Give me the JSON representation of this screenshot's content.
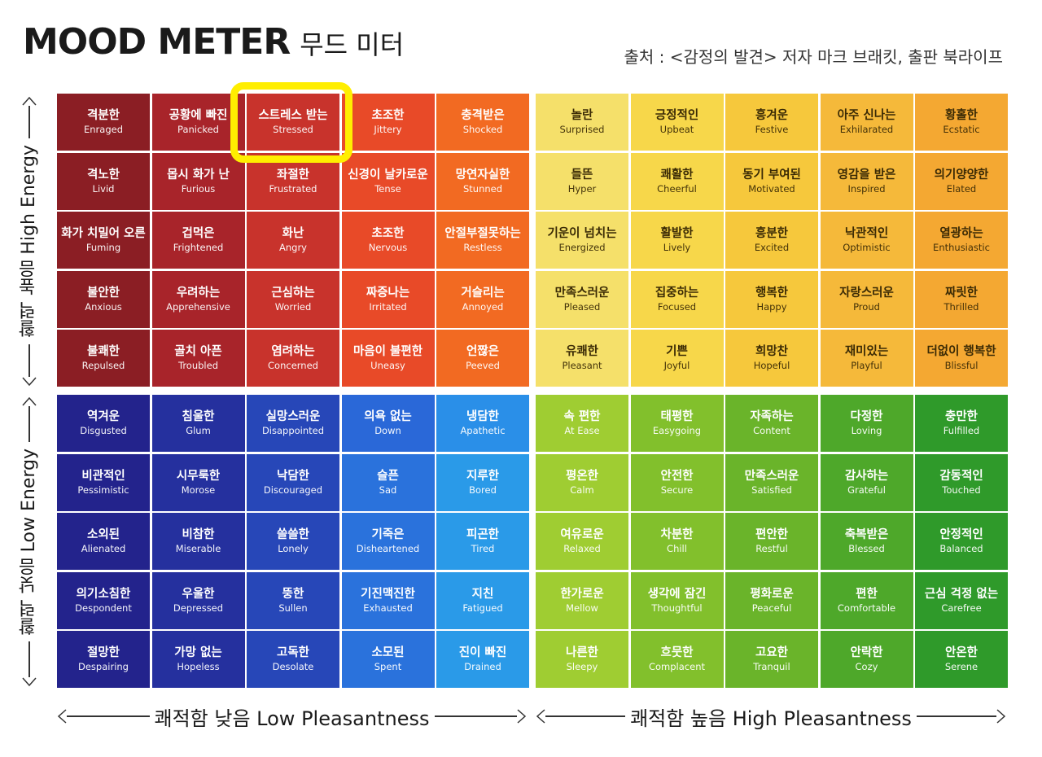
{
  "title": {
    "en": "MOOD METER",
    "ko": "무드 미터"
  },
  "source": "출처 : <감정의 발견> 저자 마크 브래킷, 출판 북라이프",
  "axes": {
    "high_energy": "활력 높음 High Energy",
    "low_energy": "활력 낮음 Low Energy",
    "low_pleasantness": "쾌적함 낮음 Low Pleasantness",
    "high_pleasantness": "쾌적함 높음  High Pleasantness"
  },
  "highlighted": "Stressed",
  "quadrants": {
    "red": {
      "colors": [
        [
          "#8b1e24",
          "#a8242a",
          "#c8332c",
          "#e84a28",
          "#f26a22"
        ],
        [
          "#8b1e24",
          "#a8242a",
          "#c8332c",
          "#e84a28",
          "#f26a22"
        ],
        [
          "#8b1e24",
          "#a8242a",
          "#c8332c",
          "#e84a28",
          "#f26a22"
        ],
        [
          "#8b1e24",
          "#a8242a",
          "#c8332c",
          "#e84a28",
          "#f26a22"
        ],
        [
          "#8b1e24",
          "#a8242a",
          "#c8332c",
          "#e84a28",
          "#f26a22"
        ]
      ],
      "cells": [
        [
          [
            "격분한",
            "Enraged"
          ],
          [
            "공황에 빠진",
            "Panicked"
          ],
          [
            "스트레스 받는",
            "Stressed"
          ],
          [
            "초조한",
            "Jittery"
          ],
          [
            "충격받은",
            "Shocked"
          ]
        ],
        [
          [
            "격노한",
            "Livid"
          ],
          [
            "몹시 화가 난",
            "Furious"
          ],
          [
            "좌절한",
            "Frustrated"
          ],
          [
            "신경이 날카로운",
            "Tense"
          ],
          [
            "망연자실한",
            "Stunned"
          ]
        ],
        [
          [
            "화가 치밀어 오른",
            "Fuming"
          ],
          [
            "겁먹은",
            "Frightened"
          ],
          [
            "화난",
            "Angry"
          ],
          [
            "초조한",
            "Nervous"
          ],
          [
            "안절부절못하는",
            "Restless"
          ]
        ],
        [
          [
            "불안한",
            "Anxious"
          ],
          [
            "우려하는",
            "Apprehensive"
          ],
          [
            "근심하는",
            "Worried"
          ],
          [
            "짜증나는",
            "Irritated"
          ],
          [
            "거슬리는",
            "Annoyed"
          ]
        ],
        [
          [
            "불쾌한",
            "Repulsed"
          ],
          [
            "골치 아픈",
            "Troubled"
          ],
          [
            "염려하는",
            "Concerned"
          ],
          [
            "마음이 불편한",
            "Uneasy"
          ],
          [
            "언짢은",
            "Peeved"
          ]
        ]
      ]
    },
    "yellow": {
      "colors": [
        [
          "#f5e06a",
          "#f7d74a",
          "#f6c83c",
          "#f5b93a",
          "#f4a832"
        ],
        [
          "#f5e06a",
          "#f7d74a",
          "#f6c83c",
          "#f5b93a",
          "#f4a832"
        ],
        [
          "#f5e06a",
          "#f7d74a",
          "#f6c83c",
          "#f5b93a",
          "#f4a832"
        ],
        [
          "#f5e06a",
          "#f7d74a",
          "#f6c83c",
          "#f5b93a",
          "#f4a832"
        ],
        [
          "#f5e06a",
          "#f7d74a",
          "#f6c83c",
          "#f5b93a",
          "#f4a832"
        ]
      ],
      "cells": [
        [
          [
            "놀란",
            "Surprised"
          ],
          [
            "긍정적인",
            "Upbeat"
          ],
          [
            "흥겨운",
            "Festive"
          ],
          [
            "아주 신나는",
            "Exhilarated"
          ],
          [
            "황홀한",
            "Ecstatic"
          ]
        ],
        [
          [
            "들뜬",
            "Hyper"
          ],
          [
            "쾌활한",
            "Cheerful"
          ],
          [
            "동기 부여된",
            "Motivated"
          ],
          [
            "영감을 받은",
            "Inspired"
          ],
          [
            "의기양양한",
            "Elated"
          ]
        ],
        [
          [
            "기운이 넘치는",
            "Energized"
          ],
          [
            "활발한",
            "Lively"
          ],
          [
            "흥분한",
            "Excited"
          ],
          [
            "낙관적인",
            "Optimistic"
          ],
          [
            "열광하는",
            "Enthusiastic"
          ]
        ],
        [
          [
            "만족스러운",
            "Pleased"
          ],
          [
            "집중하는",
            "Focused"
          ],
          [
            "행복한",
            "Happy"
          ],
          [
            "자랑스러운",
            "Proud"
          ],
          [
            "짜릿한",
            "Thrilled"
          ]
        ],
        [
          [
            "유쾌한",
            "Pleasant"
          ],
          [
            "기쁜",
            "Joyful"
          ],
          [
            "희망찬",
            "Hopeful"
          ],
          [
            "재미있는",
            "Playful"
          ],
          [
            "더없이 행복한",
            "Blissful"
          ]
        ]
      ]
    },
    "blue": {
      "colors": [
        [
          "#23238c",
          "#25309e",
          "#2747b8",
          "#2a68d8",
          "#2a8fe8"
        ],
        [
          "#23238c",
          "#25309e",
          "#2747b8",
          "#2a72dc",
          "#2a9ae8"
        ],
        [
          "#23238c",
          "#25309e",
          "#2747b8",
          "#2a72dc",
          "#2a9ae8"
        ],
        [
          "#23238c",
          "#25309e",
          "#2747b8",
          "#2a72dc",
          "#2a9ae8"
        ],
        [
          "#23238c",
          "#25309e",
          "#2747b8",
          "#2a72dc",
          "#2a9ae8"
        ]
      ],
      "cells": [
        [
          [
            "역겨운",
            "Disgusted"
          ],
          [
            "침울한",
            "Glum"
          ],
          [
            "실망스러운",
            "Disappointed"
          ],
          [
            "의욕 없는",
            "Down"
          ],
          [
            "냉담한",
            "Apathetic"
          ]
        ],
        [
          [
            "비관적인",
            "Pessimistic"
          ],
          [
            "시무룩한",
            "Morose"
          ],
          [
            "낙담한",
            "Discouraged"
          ],
          [
            "슬픈",
            "Sad"
          ],
          [
            "지루한",
            "Bored"
          ]
        ],
        [
          [
            "소외된",
            "Alienated"
          ],
          [
            "비참한",
            "Miserable"
          ],
          [
            "쓸쓸한",
            "Lonely"
          ],
          [
            "기죽은",
            "Disheartened"
          ],
          [
            "피곤한",
            "Tired"
          ]
        ],
        [
          [
            "의기소침한",
            "Despondent"
          ],
          [
            "우울한",
            "Depressed"
          ],
          [
            "뚱한",
            "Sullen"
          ],
          [
            "기진맥진한",
            "Exhausted"
          ],
          [
            "지친",
            "Fatigued"
          ]
        ],
        [
          [
            "절망한",
            "Despairing"
          ],
          [
            "가망 없는",
            "Hopeless"
          ],
          [
            "고독한",
            "Desolate"
          ],
          [
            "소모된",
            "Spent"
          ],
          [
            "진이 빠진",
            "Drained"
          ]
        ]
      ]
    },
    "green": {
      "colors": [
        [
          "#9fcd32",
          "#82c02c",
          "#6ab42a",
          "#4ea82a",
          "#2f9a2a"
        ],
        [
          "#9fcd32",
          "#82c02c",
          "#6ab42a",
          "#4ea82a",
          "#2f9a2a"
        ],
        [
          "#9fcd32",
          "#82c02c",
          "#6ab42a",
          "#4ea82a",
          "#2f9a2a"
        ],
        [
          "#9fcd32",
          "#82c02c",
          "#6ab42a",
          "#4ea82a",
          "#2f9a2a"
        ],
        [
          "#9fcd32",
          "#82c02c",
          "#6ab42a",
          "#4ea82a",
          "#2f9a2a"
        ]
      ],
      "cells": [
        [
          [
            "속 편한",
            "At Ease"
          ],
          [
            "태평한",
            "Easygoing"
          ],
          [
            "자족하는",
            "Content"
          ],
          [
            "다정한",
            "Loving"
          ],
          [
            "충만한",
            "Fulfilled"
          ]
        ],
        [
          [
            "평온한",
            "Calm"
          ],
          [
            "안전한",
            "Secure"
          ],
          [
            "만족스러운",
            "Satisfied"
          ],
          [
            "감사하는",
            "Grateful"
          ],
          [
            "감동적인",
            "Touched"
          ]
        ],
        [
          [
            "여유로운",
            "Relaxed"
          ],
          [
            "차분한",
            "Chill"
          ],
          [
            "편안한",
            "Restful"
          ],
          [
            "축복받은",
            "Blessed"
          ],
          [
            "안정적인",
            "Balanced"
          ]
        ],
        [
          [
            "한가로운",
            "Mellow"
          ],
          [
            "생각에 잠긴",
            "Thoughtful"
          ],
          [
            "평화로운",
            "Peaceful"
          ],
          [
            "편한",
            "Comfortable"
          ],
          [
            "근심 걱정 없는",
            "Carefree"
          ]
        ],
        [
          [
            "나른한",
            "Sleepy"
          ],
          [
            "흐뭇한",
            "Complacent"
          ],
          [
            "고요한",
            "Tranquil"
          ],
          [
            "안락한",
            "Cozy"
          ],
          [
            "안온한",
            "Serene"
          ]
        ]
      ]
    }
  }
}
